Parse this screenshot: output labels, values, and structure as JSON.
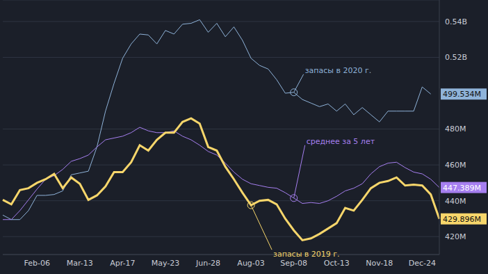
{
  "chart_data": {
    "type": "line",
    "categories": [
      null,
      null,
      null,
      null,
      "Feb-06",
      null,
      null,
      null,
      null,
      "Mar-13",
      null,
      null,
      null,
      null,
      "Apr-17",
      null,
      null,
      null,
      null,
      "May-23",
      null,
      null,
      null,
      null,
      "Jun-28",
      null,
      null,
      null,
      null,
      "Aug-03",
      null,
      null,
      null,
      null,
      "Sep-08",
      null,
      null,
      null,
      null,
      "Oct-13",
      null,
      null,
      null,
      null,
      "Nov-18",
      null,
      null,
      null,
      null,
      "Dec-24",
      null,
      null
    ],
    "ylim": [
      410,
      552
    ],
    "yticks": [
      {
        "value": 420,
        "label": "420M"
      },
      {
        "value": 440,
        "label": "440M"
      },
      {
        "value": 460,
        "label": "460M"
      },
      {
        "value": 480,
        "label": "480M"
      },
      {
        "value": 520,
        "label": "0.52B"
      },
      {
        "value": 540,
        "label": "0.54B"
      }
    ],
    "grid": true,
    "series": [
      {
        "name": "запасы в 2020 г.",
        "color": "#8fb3d9",
        "values": [
          432,
          429.5,
          429.5,
          434.5,
          443,
          443,
          443.5,
          445.5,
          454.5,
          455.5,
          456.5,
          470,
          490,
          505.5,
          519.5,
          527.5,
          533,
          532.5,
          527.5,
          535,
          533,
          538.5,
          539,
          541,
          534,
          539,
          531.5,
          537,
          529.5,
          519.5,
          515.5,
          513.5,
          507.5,
          500,
          500.5,
          496.5,
          494.5,
          492.5,
          494,
          490,
          494,
          488,
          492,
          488,
          484,
          490,
          490,
          490,
          490,
          503.5,
          499.534,
          null
        ],
        "value_labels": [
          null,
          null,
          null,
          null,
          null,
          null,
          null,
          null,
          null,
          null,
          null,
          null,
          null,
          null,
          null,
          null,
          null,
          null,
          null,
          null,
          null,
          null,
          null,
          null,
          null,
          null,
          null,
          null,
          null,
          null,
          null,
          null,
          null,
          null,
          null,
          null,
          null,
          null,
          null,
          null,
          null,
          null,
          null,
          null,
          null,
          null,
          null,
          null,
          null,
          null,
          "499.534M",
          null
        ]
      },
      {
        "name": "среднее за 5 лет",
        "color": "#a67ff0",
        "values": [
          429.5,
          429.5,
          434.5,
          440.5,
          446.5,
          452,
          454,
          457.5,
          462,
          463.5,
          465.5,
          470,
          474,
          475,
          476,
          478,
          481,
          479,
          478,
          478,
          479,
          476,
          474,
          471,
          467.5,
          465.5,
          461,
          456,
          452,
          449.5,
          448.5,
          447.5,
          447,
          444.5,
          441.5,
          438.5,
          439,
          438.5,
          440,
          442.5,
          445.5,
          447,
          449.5,
          455,
          459,
          461,
          461.5,
          458.5,
          456,
          455,
          452,
          447.389
        ],
        "value_labels": [
          null,
          null,
          null,
          null,
          null,
          null,
          null,
          null,
          null,
          null,
          null,
          null,
          null,
          null,
          null,
          null,
          null,
          null,
          null,
          null,
          null,
          null,
          null,
          null,
          null,
          null,
          null,
          null,
          null,
          null,
          null,
          null,
          null,
          null,
          null,
          null,
          null,
          null,
          null,
          null,
          null,
          null,
          null,
          null,
          null,
          null,
          null,
          null,
          null,
          null,
          null,
          "447.389M"
        ]
      },
      {
        "name": "запасы в 2019 г.",
        "color": "#f7d66b",
        "values": [
          440.5,
          438,
          446,
          447,
          450,
          452,
          455,
          447,
          453,
          449.5,
          440.5,
          443,
          448,
          456,
          456,
          461.5,
          471,
          468,
          474,
          478,
          478,
          484,
          486,
          483,
          470,
          468,
          459,
          452,
          444.5,
          437.5,
          440,
          440.5,
          438,
          430,
          423.5,
          418,
          419,
          421.5,
          424.5,
          427.5,
          436,
          434.5,
          440.5,
          447,
          450,
          451,
          453,
          448.5,
          449,
          448.5,
          443.5,
          429.896
        ],
        "value_labels": [
          null,
          null,
          null,
          null,
          null,
          null,
          null,
          null,
          null,
          null,
          null,
          null,
          null,
          null,
          null,
          null,
          null,
          null,
          null,
          null,
          null,
          null,
          null,
          null,
          null,
          null,
          null,
          null,
          null,
          null,
          null,
          null,
          null,
          null,
          null,
          null,
          null,
          null,
          null,
          null,
          null,
          null,
          null,
          null,
          null,
          null,
          null,
          null,
          null,
          null,
          null,
          "429.896M"
        ]
      }
    ],
    "annotations": [
      {
        "text": "запасы в 2020 г.",
        "x": "Sep-08"
      },
      {
        "text": "среднее за 5 лет",
        "x": "Sep-08"
      },
      {
        "text": "запасы в 2019 г.",
        "x": "Aug-03"
      }
    ]
  }
}
